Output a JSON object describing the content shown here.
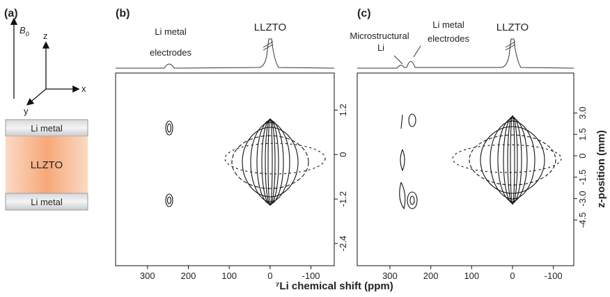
{
  "panel_a": {
    "label": "(a)",
    "field_label": "B",
    "field_sub": "0",
    "axis_labels": [
      "z",
      "x",
      "y"
    ],
    "layers": [
      "Li metal",
      "LLZTO",
      "Li metal"
    ]
  },
  "panel_b": {
    "label": "(b)",
    "peak_labels": [
      [
        "Li metal",
        "electrodes"
      ],
      [
        "LLZTO"
      ]
    ],
    "xlim": [
      378,
      -157
    ],
    "xticks": [
      300,
      200,
      100,
      0,
      -100
    ],
    "ylim": [
      -3.0,
      2.2
    ],
    "yticks": [
      1.2,
      0,
      -1.2,
      -2.4
    ]
  },
  "panel_c": {
    "label": "(c)",
    "peak_labels": [
      [
        "Microstructural",
        "Li"
      ],
      [
        "Li metal",
        "electrodes"
      ],
      [
        "LLZTO"
      ]
    ],
    "xlim": [
      380,
      -150
    ],
    "xticks": [
      300,
      200,
      100,
      0,
      -100
    ],
    "ylim": [
      -7.7,
      5.8
    ],
    "yticks": [
      {
        "value": 3,
        "label": "3.0"
      },
      1.5,
      0,
      -1.5,
      {
        "value": -3,
        "label": "-3.0"
      },
      -4.5
    ],
    "ylabel": "z-position (mm)"
  },
  "x_axis_label": "⁷Li chemical shift (ppm)"
}
